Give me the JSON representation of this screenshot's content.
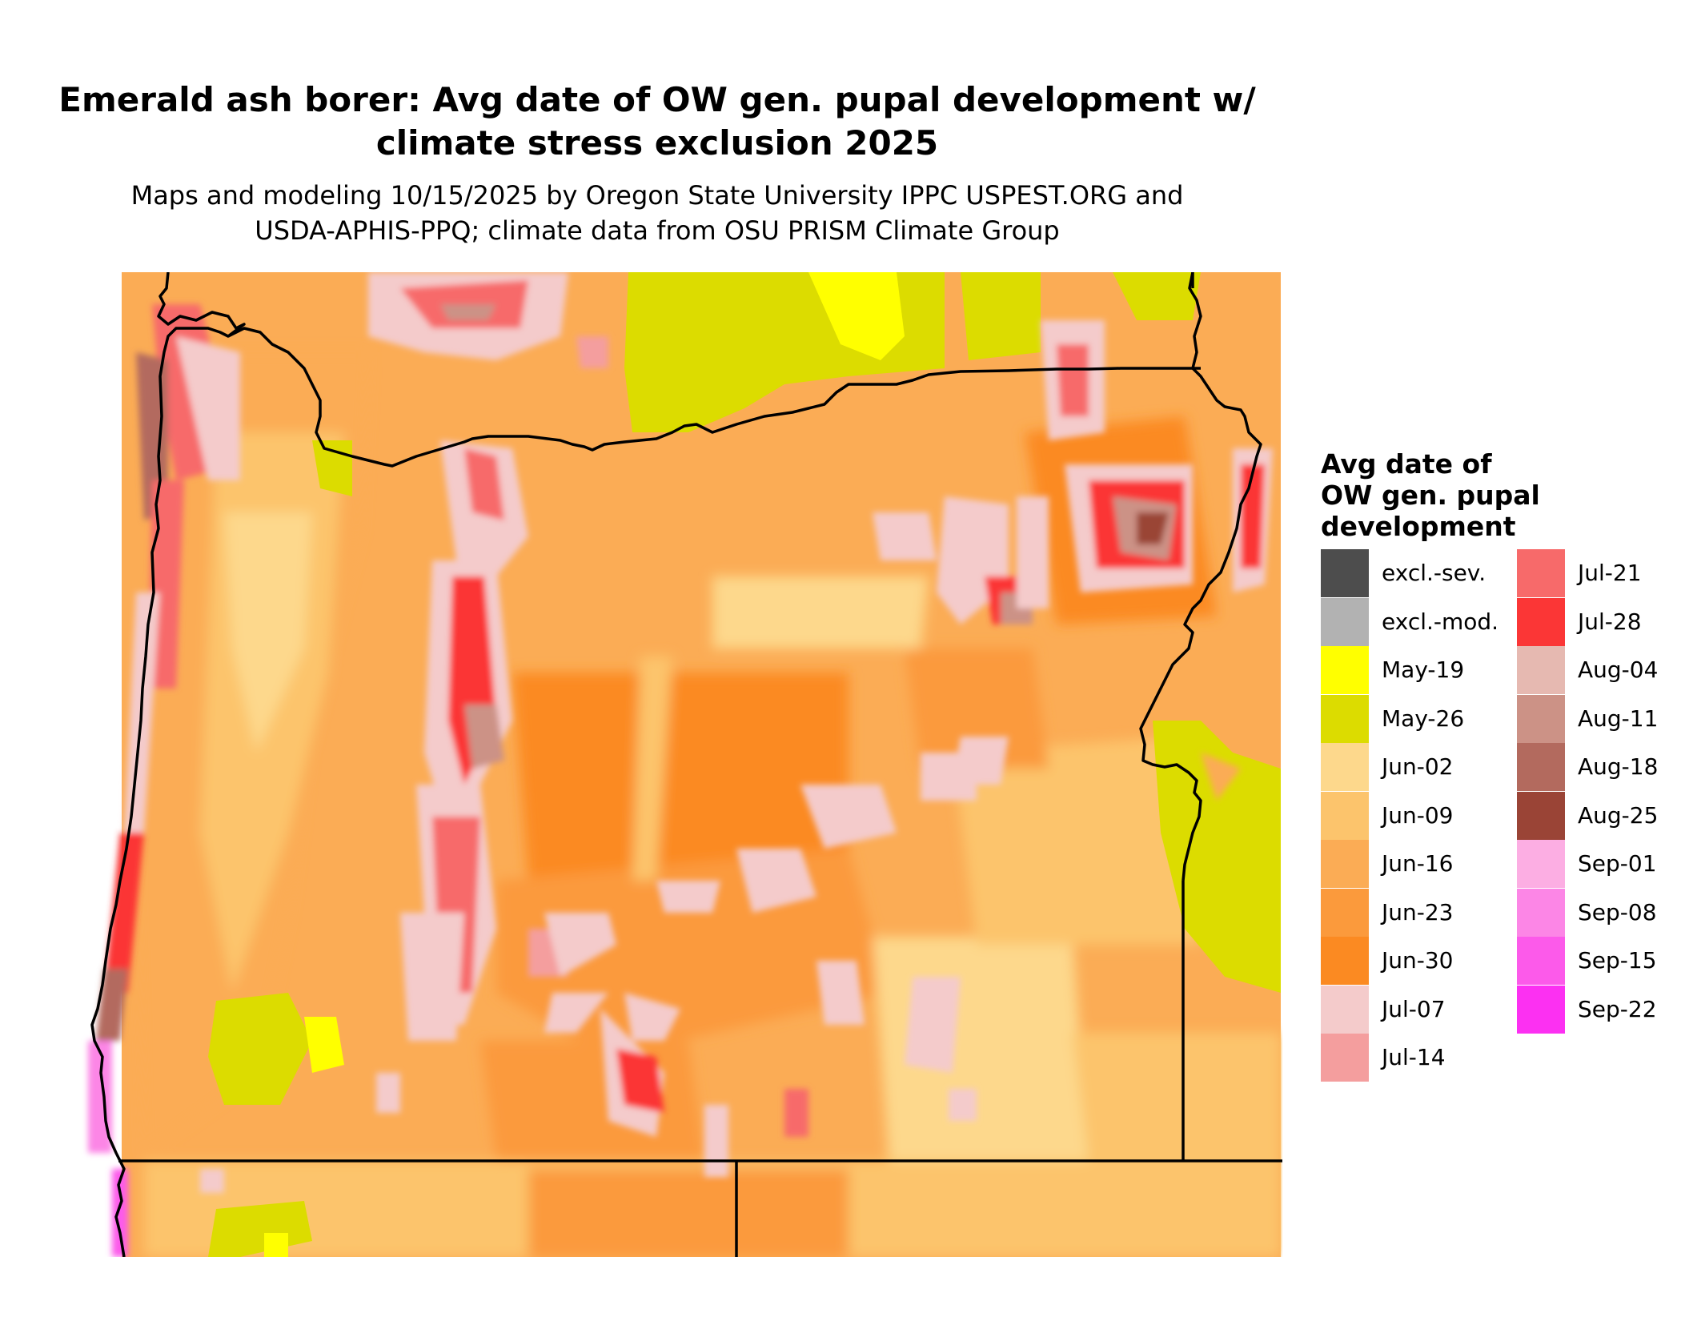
{
  "title": {
    "line1": "Emerald ash borer: Avg date of OW gen. pupal development w/",
    "line2": "climate stress exclusion 2025"
  },
  "subtitle": {
    "line1": "Maps and modeling 10/15/2025 by Oregon State University IPPC USPEST.ORG and",
    "line2": "USDA-APHIS-PPQ; climate data from OSU PRISM Climate Group"
  },
  "legend": {
    "title_lines": [
      "Avg date of",
      "OW gen. pupal",
      "development"
    ],
    "items": [
      {
        "label": "excl.-sev.",
        "color": "#4d4d4d"
      },
      {
        "label": "excl.-mod.",
        "color": "#b2b2b2"
      },
      {
        "label": "May-19",
        "color": "#ffff00"
      },
      {
        "label": "May-26",
        "color": "#dcdc00"
      },
      {
        "label": "Jun-02",
        "color": "#fdd88c"
      },
      {
        "label": "Jun-09",
        "color": "#fcc46c"
      },
      {
        "label": "Jun-16",
        "color": "#fbac55"
      },
      {
        "label": "Jun-23",
        "color": "#fb9a3c"
      },
      {
        "label": "Jun-30",
        "color": "#fb8a22"
      },
      {
        "label": "Jul-07",
        "color": "#f4cbcb"
      },
      {
        "label": "Jul-14",
        "color": "#f49e9e"
      },
      {
        "label": "Jul-21",
        "color": "#f76a6a"
      },
      {
        "label": "Jul-28",
        "color": "#fb3636"
      },
      {
        "label": "Aug-04",
        "color": "#e6b9b1"
      },
      {
        "label": "Aug-11",
        "color": "#cc9286"
      },
      {
        "label": "Aug-18",
        "color": "#b36a5e"
      },
      {
        "label": "Aug-25",
        "color": "#9a4436"
      },
      {
        "label": "Sep-01",
        "color": "#fcaee3"
      },
      {
        "label": "Sep-08",
        "color": "#fc86e6"
      },
      {
        "label": "Sep-15",
        "color": "#fc5aea"
      },
      {
        "label": "Sep-22",
        "color": "#fc30f2"
      }
    ]
  },
  "map": {
    "region": "Oregon",
    "boundary_color": "#000000"
  }
}
